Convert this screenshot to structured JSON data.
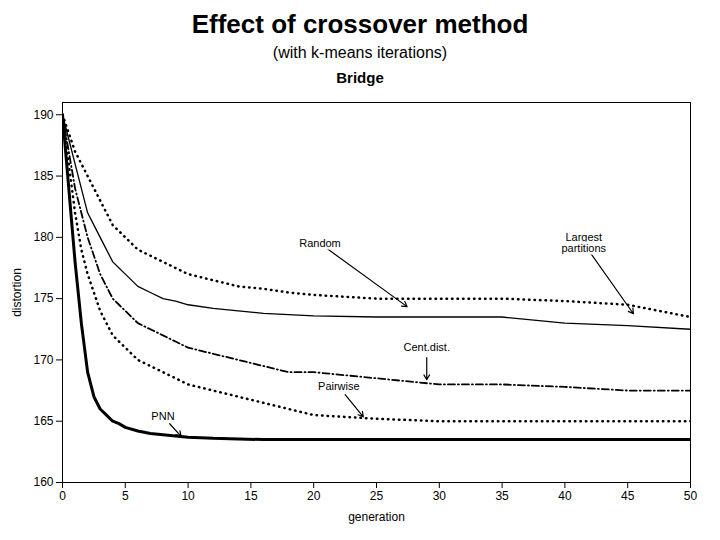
{
  "chart_data": {
    "type": "line",
    "title": "Effect of crossover method",
    "subtitle": "(with k-means iterations)",
    "chart_title": "Bridge",
    "xlabel": "generation",
    "ylabel": "distortion",
    "xlim": [
      0,
      50
    ],
    "ylim": [
      160,
      191
    ],
    "xticks": [
      0,
      5,
      10,
      15,
      20,
      25,
      30,
      35,
      40,
      45,
      50
    ],
    "yticks": [
      160,
      165,
      170,
      175,
      180,
      185,
      190
    ],
    "grid": false,
    "x": [
      0,
      0.5,
      1,
      1.5,
      2,
      2.5,
      3,
      3.5,
      4,
      4.5,
      5,
      6,
      7,
      8,
      9,
      10,
      12,
      14,
      16,
      18,
      20,
      25,
      30,
      35,
      40,
      45,
      50
    ],
    "series": [
      {
        "name": "Largest partitions",
        "color": "#000000",
        "line_style": "dotted",
        "values": [
          190,
          188.5,
          187,
          186,
          185,
          184,
          183,
          182,
          181,
          180.5,
          180,
          179,
          178.5,
          178,
          177.5,
          177,
          176.5,
          176,
          175.8,
          175.5,
          175.3,
          175.0,
          175.0,
          175.0,
          174.8,
          174.5,
          173.5
        ]
      },
      {
        "name": "Random",
        "color": "#000000",
        "line_style": "solid",
        "values": [
          190,
          188,
          186,
          184,
          182,
          181,
          180,
          179,
          178,
          177.5,
          177,
          176,
          175.5,
          175,
          174.8,
          174.5,
          174.2,
          174.0,
          173.8,
          173.7,
          173.6,
          173.5,
          173.5,
          173.5,
          173.0,
          172.8,
          172.5
        ]
      },
      {
        "name": "Cent.dist.",
        "color": "#000000",
        "line_style": "dashdot",
        "values": [
          190,
          187,
          184,
          182,
          180,
          178.5,
          177,
          176,
          175,
          174.5,
          174,
          173,
          172.5,
          172,
          171.5,
          171,
          170.5,
          170,
          169.5,
          169,
          169,
          168.5,
          168,
          168,
          167.8,
          167.5,
          167.5
        ]
      },
      {
        "name": "Pairwise",
        "color": "#000000",
        "line_style": "dotted",
        "values": [
          190,
          186,
          182,
          179,
          177,
          175.5,
          174,
          173,
          172,
          171.5,
          171,
          170,
          169.5,
          169,
          168.5,
          168,
          167.5,
          167,
          166.5,
          166,
          165.5,
          165.2,
          165.0,
          165.0,
          165.0,
          165.0,
          165.0
        ]
      },
      {
        "name": "PNN",
        "color": "#000000",
        "line_style": "solid",
        "values": [
          190,
          184,
          178,
          173,
          169,
          167,
          166,
          165.5,
          165,
          164.8,
          164.5,
          164.2,
          164.0,
          163.9,
          163.8,
          163.7,
          163.6,
          163.55,
          163.5,
          163.5,
          163.5,
          163.5,
          163.5,
          163.5,
          163.5,
          163.5,
          163.5
        ]
      }
    ],
    "annotations": [
      {
        "text": "Random",
        "x": 27.5,
        "y": 174.3,
        "text_x": 20.5,
        "text_y": 179.5
      },
      {
        "text": "Largest\npartitions",
        "x": 45.5,
        "y": 173.7,
        "text_x": 41.5,
        "text_y": 179.5
      },
      {
        "text": "Cent.dist.",
        "x": 29,
        "y": 168.3,
        "text_x": 29,
        "text_y": 171.0
      },
      {
        "text": "Pairwise",
        "x": 24,
        "y": 165.3,
        "text_x": 22,
        "text_y": 167.8
      },
      {
        "text": "PNN",
        "x": 9.5,
        "y": 163.7,
        "text_x": 8.0,
        "text_y": 165.4
      }
    ]
  }
}
